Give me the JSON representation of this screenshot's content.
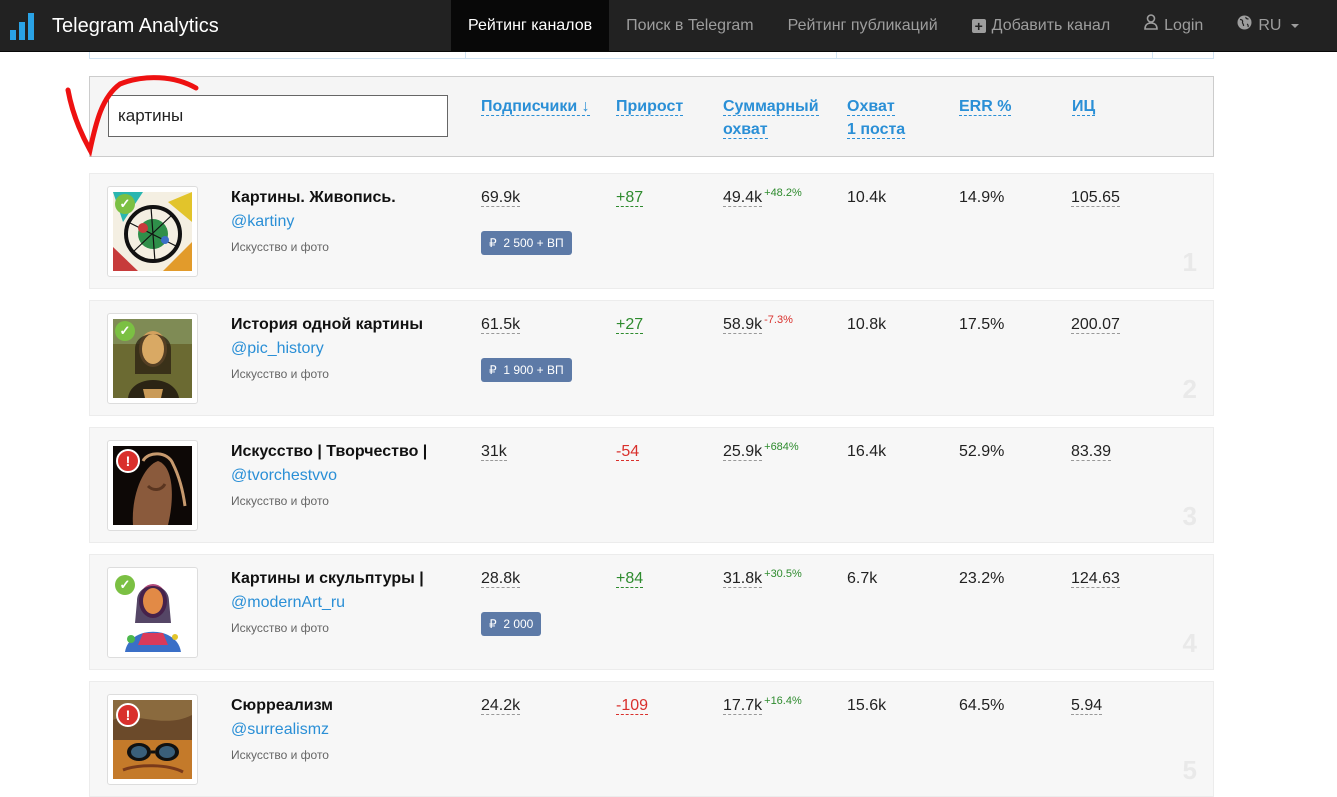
{
  "app": {
    "title": "Telegram Analytics"
  },
  "nav": {
    "items": [
      {
        "label": "Рейтинг каналов"
      },
      {
        "label": "Поиск в Telegram"
      },
      {
        "label": "Рейтинг публикаций"
      },
      {
        "label": "Добавить канал"
      },
      {
        "label": "Login"
      },
      {
        "label": "RU"
      }
    ],
    "icons": {
      "brand": "bar-chart-icon",
      "add": "plus-square-icon",
      "login": "user-icon",
      "lang": "globe-icon"
    }
  },
  "search": {
    "value": "картины"
  },
  "columns": {
    "subscribers": "Подписчики ↓",
    "growth": "Прирост",
    "reach_line1": "Суммарный",
    "reach_line2": "охват",
    "post_reach_line1": "Охват",
    "post_reach_line2": "1 поста",
    "err": "ERR %",
    "ic": "ИЦ"
  },
  "channels": [
    {
      "title": "Картины. Живопись.",
      "handle": "@kartiny",
      "category": "Искусство и фото",
      "subscribers": "69.9k",
      "growth": "+87",
      "reach": "49.4k",
      "reach_change": "+48.2%",
      "post_reach": "10.4k",
      "err": "14.9%",
      "ic": "105.65",
      "price": "2 500 + ВП",
      "status": "verified",
      "rank": "1"
    },
    {
      "title": "История одной картины",
      "handle": "@pic_history",
      "category": "Искусство и фото",
      "subscribers": "61.5k",
      "growth": "+27",
      "reach": "58.9k",
      "reach_change": "-7.3%",
      "post_reach": "10.8k",
      "err": "17.5%",
      "ic": "200.07",
      "price": "1 900 + ВП",
      "status": "verified",
      "rank": "2"
    },
    {
      "title": "Искусство | Творчество |",
      "handle": "@tvorchestvvo",
      "category": "Искусство и фото",
      "subscribers": "31k",
      "growth": "-54",
      "reach": "25.9k",
      "reach_change": "+684%",
      "post_reach": "16.4k",
      "err": "52.9%",
      "ic": "83.39",
      "price": "",
      "status": "warning",
      "rank": "3"
    },
    {
      "title": "Картины и скульптуры |",
      "handle": "@modernArt_ru",
      "category": "Искусство и фото",
      "subscribers": "28.8k",
      "growth": "+84",
      "reach": "31.8k",
      "reach_change": "+30.5%",
      "post_reach": "6.7k",
      "err": "23.2%",
      "ic": "124.63",
      "price": "2 000",
      "status": "verified",
      "rank": "4"
    },
    {
      "title": "Сюрреализм",
      "handle": "@surrealismz",
      "category": "Искусство и фото",
      "subscribers": "24.2k",
      "growth": "-109",
      "reach": "17.7k",
      "reach_change": "+16.4%",
      "post_reach": "15.6k",
      "err": "64.5%",
      "ic": "5.94",
      "price": "",
      "status": "warning",
      "rank": "5"
    }
  ],
  "colors": {
    "accent": "#2a8fd6",
    "positive": "#2e8b2e",
    "negative": "#d9302c",
    "price_badge": "#5d7aa7",
    "navbar": "#222222"
  }
}
